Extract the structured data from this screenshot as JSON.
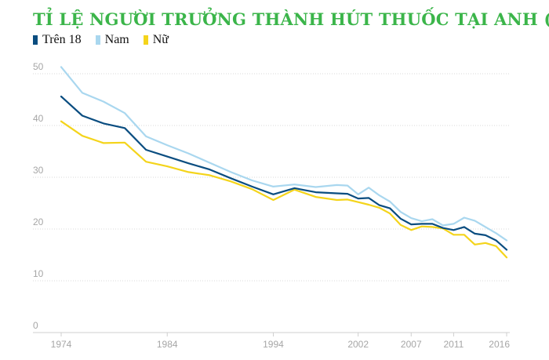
{
  "title": "TỈ LỆ NGƯỜI TRƯỞNG THÀNH HÚT THUỐC TẠI ANH (%)",
  "colors": {
    "title": "#3bb54a",
    "grid": "#d9d9d9",
    "axis_text": "#a6a6a6"
  },
  "chart_data": {
    "type": "line",
    "title": "TỈ LỆ NGƯỜI TRƯỞNG THÀNH HÚT THUỐC TẠI ANH (%)",
    "xlabel": "",
    "ylabel": "",
    "xlim": [
      1974,
      2016
    ],
    "ylim": [
      0,
      50
    ],
    "x_ticks": [
      1974,
      1984,
      1994,
      2002,
      2007,
      2011,
      2016
    ],
    "y_ticks": [
      0,
      10,
      20,
      30,
      40,
      50
    ],
    "grid": "horizontal dotted",
    "legend_position": "top-left",
    "x": [
      1974,
      1976,
      1978,
      1980,
      1982,
      1984,
      1986,
      1988,
      1990,
      1992,
      1994,
      1996,
      1998,
      2000,
      2001,
      2002,
      2003,
      2004,
      2005,
      2006,
      2007,
      2008,
      2009,
      2010,
      2011,
      2012,
      2013,
      2014,
      2015,
      2016
    ],
    "series": [
      {
        "name": "Trên 18",
        "color": "#0a4d80",
        "values": [
          45.6,
          41.9,
          40.4,
          39.5,
          35.3,
          34.0,
          32.7,
          31.5,
          29.8,
          28.2,
          26.7,
          27.9,
          27.1,
          26.9,
          26.8,
          25.9,
          26.0,
          24.6,
          24.0,
          22.0,
          20.9,
          21.0,
          21.0,
          20.2,
          19.8,
          20.4,
          19.1,
          18.8,
          17.8,
          16.0
        ]
      },
      {
        "name": "Nam",
        "color": "#a9d7ef",
        "values": [
          51.3,
          46.3,
          44.6,
          42.4,
          37.9,
          36.2,
          34.6,
          32.8,
          31.0,
          29.4,
          28.2,
          28.6,
          28.1,
          28.5,
          28.4,
          26.7,
          28.0,
          26.5,
          25.3,
          23.3,
          22.1,
          21.5,
          21.9,
          20.7,
          21.0,
          22.2,
          21.6,
          20.4,
          19.2,
          17.8
        ]
      },
      {
        "name": "Nữ",
        "color": "#f4d41b",
        "values": [
          40.8,
          38.0,
          36.6,
          36.7,
          33.0,
          32.1,
          31.0,
          30.4,
          29.2,
          27.7,
          25.6,
          27.6,
          26.2,
          25.6,
          25.7,
          25.2,
          24.7,
          24.1,
          23.0,
          20.8,
          19.8,
          20.5,
          20.4,
          20.1,
          18.9,
          18.9,
          17.0,
          17.3,
          16.7,
          14.5
        ]
      }
    ]
  }
}
